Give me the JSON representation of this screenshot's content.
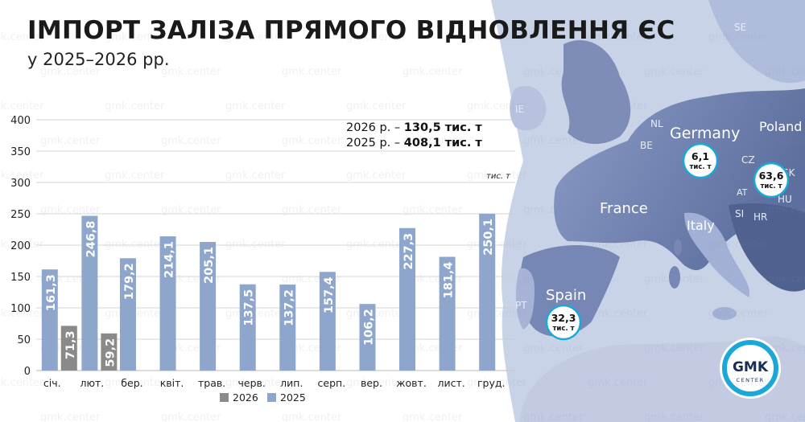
{
  "title": "ІМПОРТ ЗАЛІЗА ПРЯМОГО ВІДНОВЛЕННЯ ЄС",
  "subtitle": "у 2025–2026 рр.",
  "summary": [
    {
      "label": "2026 р. –",
      "value": "130,5 тис. т"
    },
    {
      "label": "2025 р. –",
      "value": "408,1 тис. т"
    }
  ],
  "unit_label": "тис. т",
  "watermark_text": "gmk.center",
  "logo": {
    "line1": "GMK",
    "line2": "CENTER"
  },
  "colors": {
    "series_2025": "#8ea6cc",
    "series_2026": "#8a8a8a",
    "map_water": "#c9d3e8",
    "map_land_dark": "#6b7fae",
    "map_land_light": "#a7b4d6",
    "logo_ring": "#1aa8d8"
  },
  "map": {
    "country_labels": [
      "Germany",
      "Poland",
      "France",
      "Italy",
      "Spain",
      "NL",
      "BE",
      "CZ",
      "SK",
      "AT",
      "SI",
      "HR",
      "HU",
      "PT",
      "IE",
      "SE"
    ],
    "callouts": [
      {
        "country": "Germany",
        "value": "6,1",
        "unit": "тис. т"
      },
      {
        "country": "Austria",
        "value": "63,6",
        "unit": "тис. т"
      },
      {
        "country": "Spain",
        "value": "32,3",
        "unit": "тис. т"
      }
    ]
  },
  "chart_data": {
    "type": "bar",
    "categories": [
      "січ.",
      "лют.",
      "бер.",
      "квіт.",
      "трав.",
      "черв.",
      "лип.",
      "серп.",
      "вер.",
      "жовт.",
      "лист.",
      "груд."
    ],
    "series": [
      {
        "name": "2025",
        "values": [
          161.3,
          246.8,
          179.2,
          214.1,
          205.1,
          137.5,
          137.2,
          157.4,
          106.2,
          227.3,
          181.4,
          250.1
        ],
        "labels": [
          "161,3",
          "246,8",
          "179,2",
          "214,1",
          "205,1",
          "137,5",
          "137,2",
          "157,4",
          "106,2",
          "227,3",
          "181,4",
          "250,1"
        ]
      },
      {
        "name": "2026",
        "values": [
          71.3,
          59.2,
          null,
          null,
          null,
          null,
          null,
          null,
          null,
          null,
          null,
          null
        ],
        "labels": [
          "71,3",
          "59,2",
          "",
          "",
          "",
          "",
          "",
          "",
          "",
          "",
          "",
          ""
        ]
      }
    ],
    "ylim": [
      0,
      400
    ],
    "yticks": [
      0,
      50,
      100,
      150,
      200,
      250,
      300,
      350,
      400
    ],
    "grid": true,
    "legend": {
      "placement": "bottom",
      "order": [
        "2026",
        "2025"
      ]
    }
  }
}
